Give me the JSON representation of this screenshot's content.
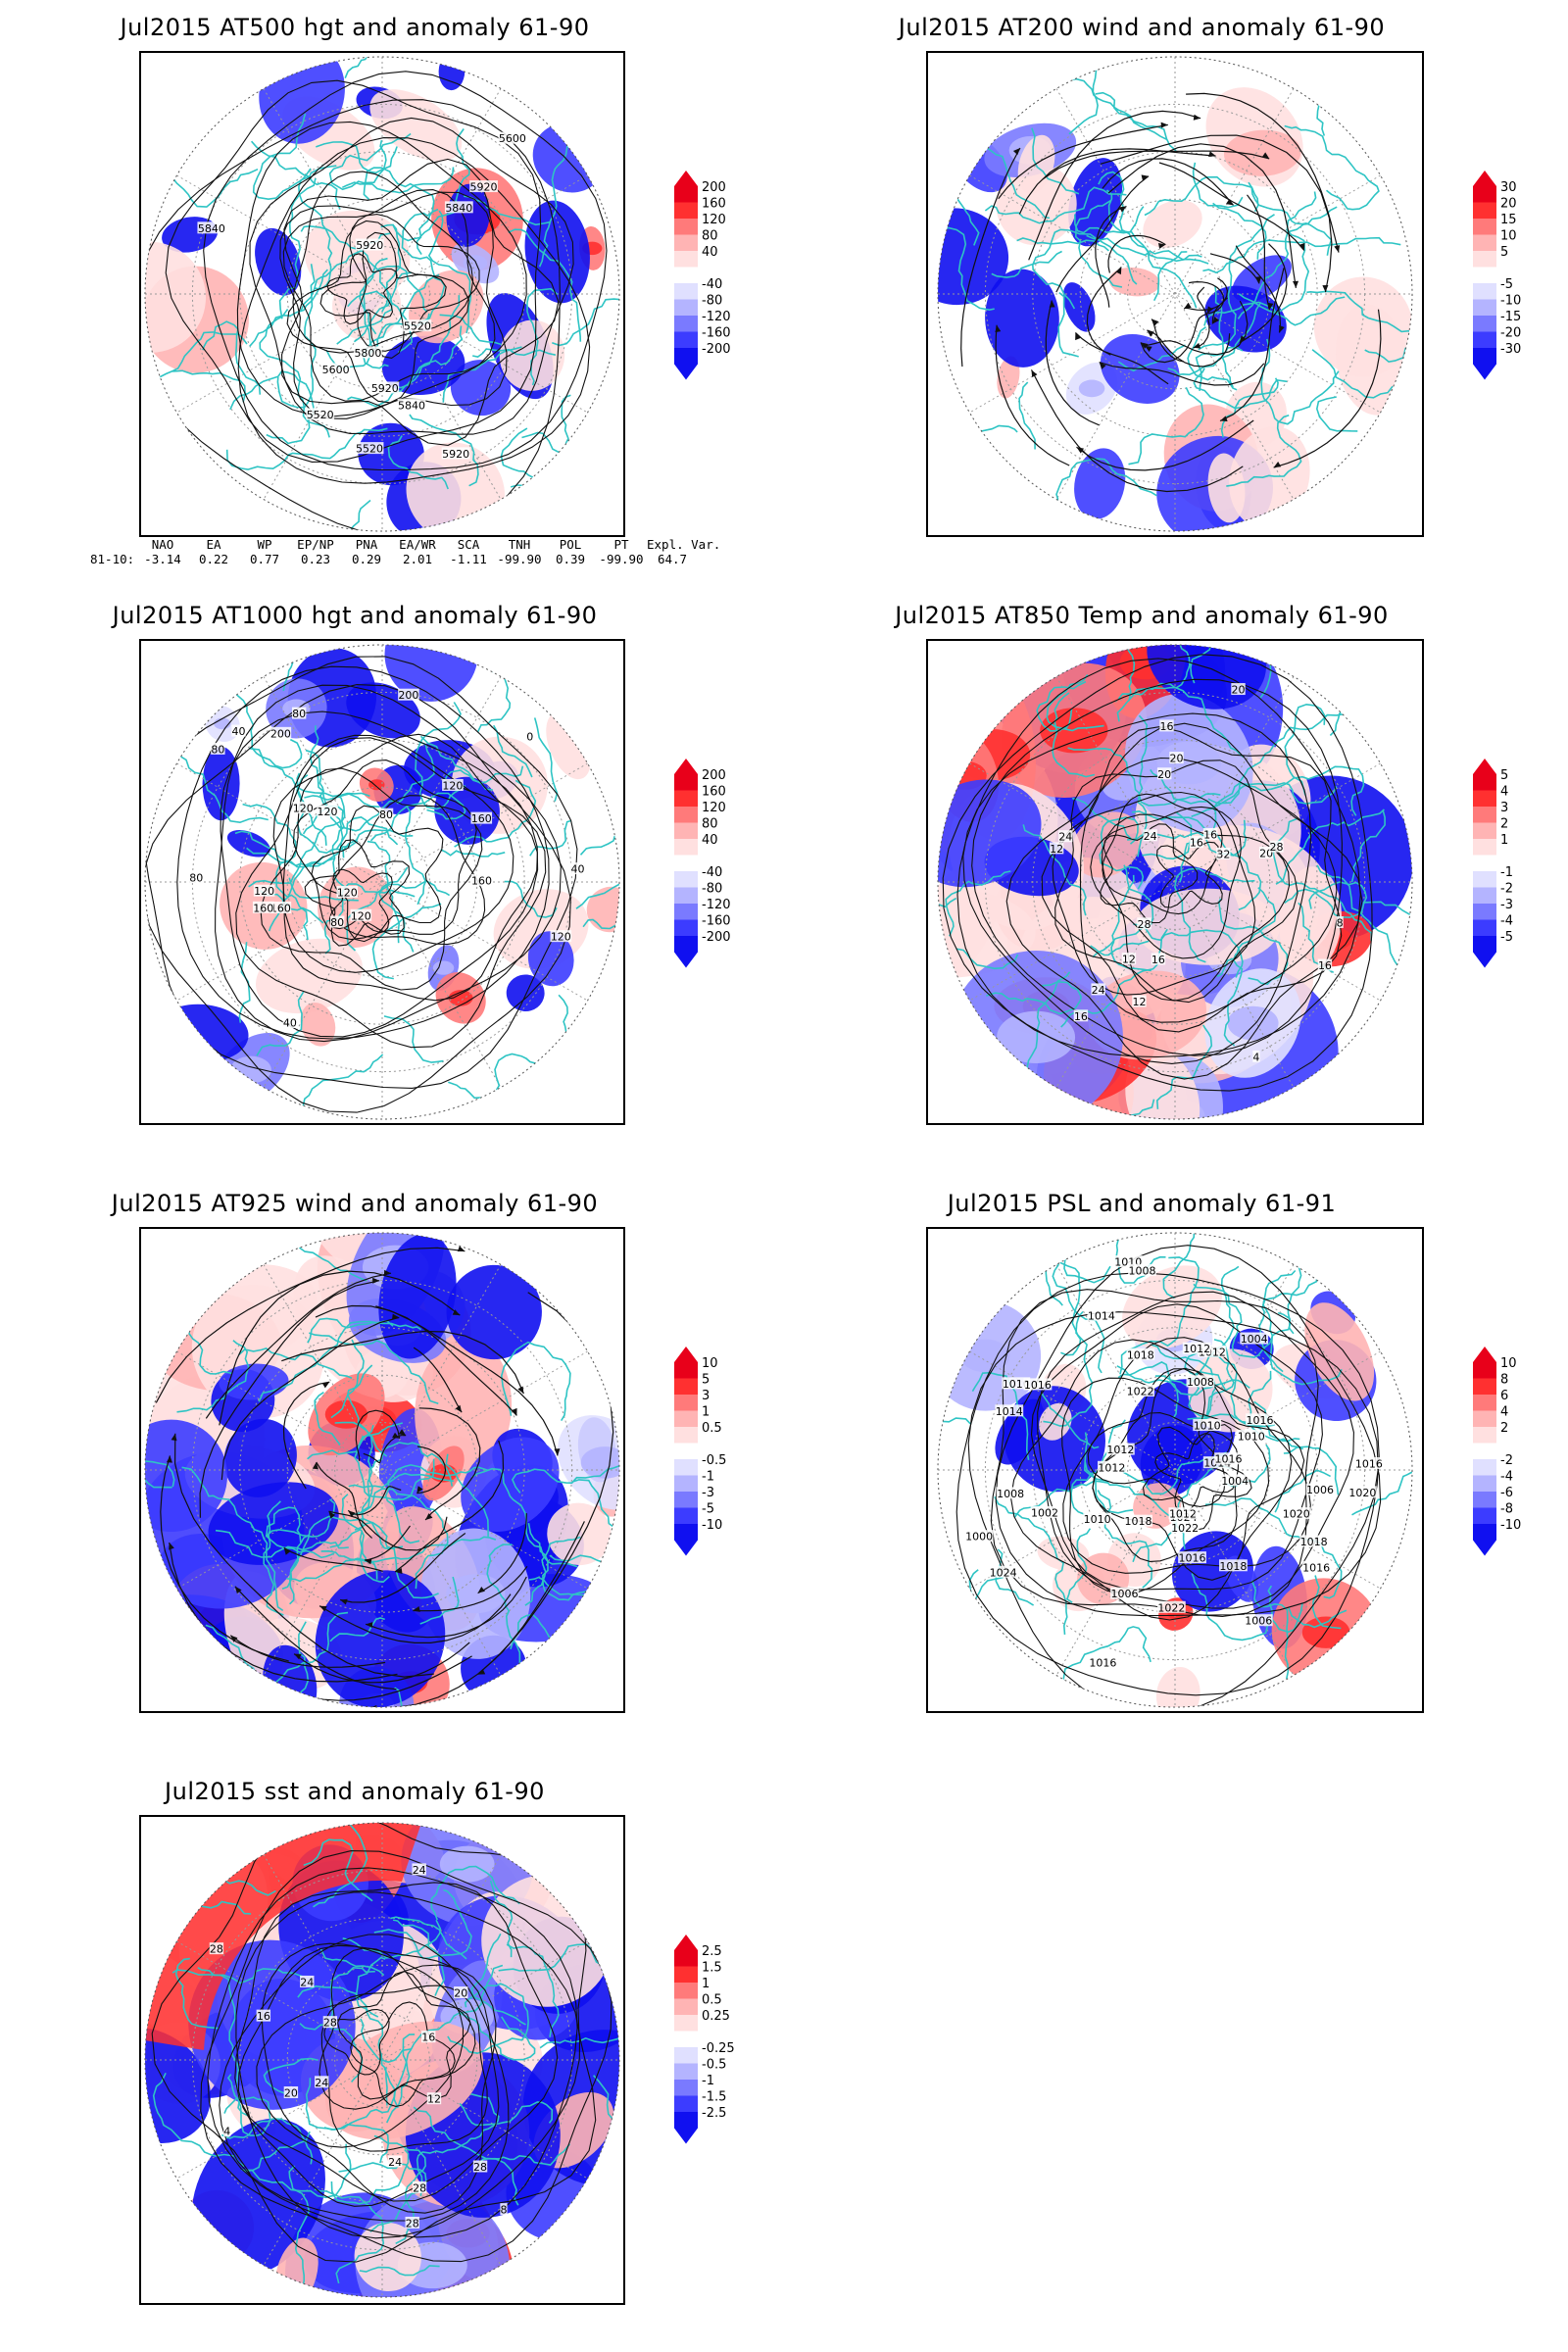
{
  "panels": [
    {
      "id": "at500",
      "title": "Jul2015 AT500 hgt and anomaly 61-90",
      "cbar_labels": [
        "200",
        "160",
        "120",
        "80",
        "40",
        "-40",
        "-80",
        "-120",
        "-160",
        "-200"
      ],
      "contour_labels": [
        "5920",
        "5840",
        "5800",
        "5520",
        "5600",
        "5520",
        "5920",
        "5600",
        "5520",
        "5840",
        "5840",
        "5920",
        "5920"
      ],
      "coast_color": "#2ec4c4"
    },
    {
      "id": "at200",
      "title": "Jul2015 AT200 wind and anomaly 61-90",
      "cbar_labels": [
        "30",
        "20",
        "15",
        "10",
        "5",
        "-5",
        "-10",
        "-15",
        "-20",
        "-30"
      ],
      "contour_labels": [],
      "coast_color": "#2ec4c4"
    },
    {
      "id": "at1000",
      "title": "Jul2015 AT1000 hgt and anomaly 61-90",
      "cbar_labels": [
        "200",
        "160",
        "120",
        "80",
        "40",
        "-40",
        "-80",
        "-120",
        "-160",
        "-200"
      ],
      "contour_labels": [
        "120",
        "160",
        "120",
        "80",
        "200",
        "160",
        "120",
        "40",
        "80",
        "120",
        "160",
        "0",
        "40",
        "40",
        "80",
        "120",
        "200",
        "160",
        "120",
        "80",
        "120",
        "80"
      ],
      "coast_color": "#2ec4c4"
    },
    {
      "id": "at850",
      "title": "Jul2015 AT850 Temp and anomaly 61-90",
      "cbar_labels": [
        "5",
        "4",
        "3",
        "2",
        "1",
        "-1",
        "-2",
        "-3",
        "-4",
        "-5"
      ],
      "contour_labels": [
        "16",
        "12",
        "16",
        "24",
        "20",
        "8",
        "12",
        "4",
        "24",
        "28",
        "20",
        "16",
        "12",
        "20",
        "24",
        "28",
        "32",
        "20",
        "16",
        "16",
        "16"
      ],
      "coast_color": "#2ec4c4"
    },
    {
      "id": "at925",
      "title": "Jul2015 AT925 wind and anomaly 61-90",
      "cbar_labels": [
        "10",
        "5",
        "3",
        "1",
        "0.5",
        "-0.5",
        "-1",
        "-3",
        "-5",
        "-10"
      ],
      "contour_labels": [],
      "coast_color": "#2ec4c4"
    },
    {
      "id": "psl",
      "title": "Jul2015 PSL and anomaly 61-91",
      "cbar_labels": [
        "10",
        "8",
        "6",
        "4",
        "2",
        "-2",
        "-4",
        "-6",
        "-8",
        "-10"
      ],
      "contour_labels": [
        "1010",
        "1010",
        "1014",
        "1016",
        "1020",
        "1016",
        "1012",
        "1010",
        "1008",
        "1006",
        "1024",
        "1022",
        "1018",
        "1014",
        "1016",
        "1012",
        "1008",
        "1004",
        "1018",
        "1006",
        "1012",
        "1022",
        "1012",
        "1010",
        "1016",
        "1016",
        "1024",
        "1022",
        "1020",
        "1018",
        "1016",
        "1014",
        "1010",
        "1012",
        "1016",
        "1018",
        "1000",
        "1004",
        "1006",
        "1008",
        "1002"
      ],
      "coast_color": "#2ec4c4"
    },
    {
      "id": "sst",
      "title": "Jul2015 sst and anomaly 61-90",
      "cbar_labels": [
        "2.5",
        "1.5",
        "1",
        "0.5",
        "0.25",
        "-0.25",
        "-0.5",
        "-1",
        "-1.5",
        "-2.5"
      ],
      "contour_labels": [
        "28",
        "24",
        "24",
        "20",
        "16",
        "28",
        "8",
        "4",
        "28",
        "16",
        "12",
        "20",
        "24",
        "28",
        "24",
        "28"
      ],
      "coast_color": "#2ec4c4"
    }
  ],
  "indices": {
    "header": [
      "NAO",
      "EA",
      "WP",
      "EP/NP",
      "PNA",
      "EA/WR",
      "SCA",
      "TNH",
      "POL",
      "PT",
      "Expl. Var."
    ],
    "row_label": "81-10:",
    "values": [
      "-3.14",
      "0.22",
      "0.77",
      "0.23",
      "0.29",
      "2.01",
      "-1.11",
      "-99.90",
      "0.39",
      "-99.90",
      "64.7"
    ]
  },
  "colors": {
    "pos": [
      "#e8001a",
      "#ff3030",
      "#ff7a7a",
      "#ffb4b4",
      "#ffe0e0"
    ],
    "neg": [
      "#e0e0ff",
      "#b4b4ff",
      "#7a7aff",
      "#3c3cff",
      "#1010f0"
    ],
    "coast": "#2ec4c4"
  }
}
